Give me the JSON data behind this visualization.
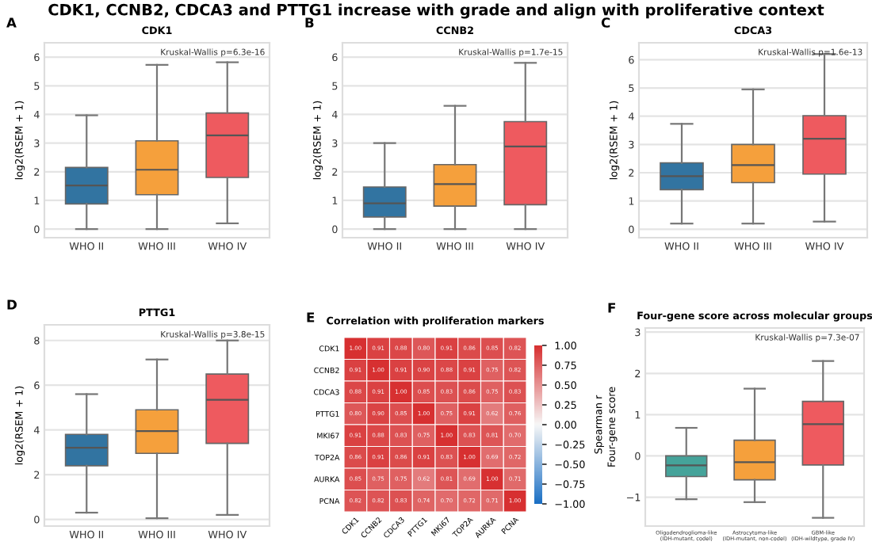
{
  "chart_data": [
    {
      "type": "box",
      "title": "CDK1",
      "ylabel": "log2(RSEM + 1)",
      "categories": [
        "WHO II",
        "WHO III",
        "WHO IV"
      ],
      "colors": [
        "#3274a1",
        "#f5a03c",
        "#ee5a5f"
      ],
      "boxes": [
        {
          "low": 0,
          "q1": 0.88,
          "median": 1.52,
          "q3": 2.15,
          "high": 3.97
        },
        {
          "low": 0,
          "q1": 1.2,
          "median": 2.07,
          "q3": 3.08,
          "high": 5.73
        },
        {
          "low": 0.2,
          "q1": 1.8,
          "median": 3.27,
          "q3": 4.05,
          "high": 5.82
        }
      ],
      "ylim": [
        -0.3,
        6.5
      ],
      "yticks": [
        0,
        1,
        2,
        3,
        4,
        5,
        6
      ],
      "grid": "y",
      "annotations": [
        "A",
        "Kruskal-Wallis p=6.3e-16",
        "CDK1, CCNB2, CDCA3 and PTTG1 increase with grade and align with proliferative context"
      ]
    },
    {
      "type": "box",
      "title": "CCNB2",
      "ylabel": "log2(RSEM + 1)",
      "categories": [
        "WHO II",
        "WHO III",
        "WHO IV"
      ],
      "colors": [
        "#3274a1",
        "#f5a03c",
        "#ee5a5f"
      ],
      "boxes": [
        {
          "low": 0,
          "q1": 0.42,
          "median": 0.9,
          "q3": 1.47,
          "high": 3.0
        },
        {
          "low": 0,
          "q1": 0.8,
          "median": 1.57,
          "q3": 2.25,
          "high": 4.3
        },
        {
          "low": 0,
          "q1": 0.85,
          "median": 2.88,
          "q3": 3.75,
          "high": 5.8
        }
      ],
      "ylim": [
        -0.3,
        6.5
      ],
      "yticks": [
        0,
        1,
        2,
        3,
        4,
        5,
        6
      ],
      "grid": "y",
      "annotations": [
        "B",
        "Kruskal-Wallis p=1.7e-15"
      ]
    },
    {
      "type": "box",
      "title": "CDCA3",
      "ylabel": "log2(RSEM + 1)",
      "categories": [
        "WHO II",
        "WHO III",
        "WHO IV"
      ],
      "colors": [
        "#3274a1",
        "#f5a03c",
        "#ee5a5f"
      ],
      "boxes": [
        {
          "low": 0.2,
          "q1": 1.4,
          "median": 1.88,
          "q3": 2.35,
          "high": 3.73
        },
        {
          "low": 0.2,
          "q1": 1.65,
          "median": 2.27,
          "q3": 3.0,
          "high": 4.95
        },
        {
          "low": 0.27,
          "q1": 1.95,
          "median": 3.2,
          "q3": 4.02,
          "high": 6.2
        }
      ],
      "ylim": [
        -0.3,
        6.6
      ],
      "yticks": [
        0,
        1,
        2,
        3,
        4,
        5,
        6
      ],
      "grid": "y",
      "annotations": [
        "C",
        "Kruskal-Wallis p=1.6e-13"
      ]
    },
    {
      "type": "box",
      "title": "PTTG1",
      "ylabel": "log2(RSEM + 1)",
      "categories": [
        "WHO II",
        "WHO III",
        "WHO IV"
      ],
      "colors": [
        "#3274a1",
        "#f5a03c",
        "#ee5a5f"
      ],
      "boxes": [
        {
          "low": 0.3,
          "q1": 2.4,
          "median": 3.2,
          "q3": 3.8,
          "high": 5.6
        },
        {
          "low": 0.05,
          "q1": 2.95,
          "median": 3.95,
          "q3": 4.9,
          "high": 7.15
        },
        {
          "low": 0.2,
          "q1": 3.4,
          "median": 5.35,
          "q3": 6.5,
          "high": 8.0
        }
      ],
      "ylim": [
        -0.3,
        8.7
      ],
      "yticks": [
        0,
        2,
        4,
        6,
        8
      ],
      "grid": "y",
      "annotations": [
        "D",
        "Kruskal-Wallis p=3.8e-15"
      ]
    },
    {
      "type": "heatmap",
      "title": "Correlation with proliferation markers",
      "clabel": "Spearman r",
      "categories": [
        "CDK1",
        "CCNB2",
        "CDCA3",
        "PTTG1",
        "MKI67",
        "TOP2A",
        "AURKA",
        "PCNA"
      ],
      "y_categories": [
        "CDK1",
        "CCNB2",
        "CDCA3",
        "PTTG1",
        "MKI67",
        "TOP2A",
        "AURKA",
        "PCNA"
      ],
      "cells": [
        [
          1.0,
          0.91,
          0.88,
          0.8,
          0.91,
          0.86,
          0.85,
          0.82
        ],
        [
          0.91,
          1.0,
          0.91,
          0.9,
          0.88,
          0.91,
          0.75,
          0.82
        ],
        [
          0.88,
          0.91,
          1.0,
          0.85,
          0.83,
          0.86,
          0.75,
          0.83
        ],
        [
          0.8,
          0.9,
          0.85,
          1.0,
          0.75,
          0.91,
          0.62,
          0.76
        ],
        [
          0.91,
          0.88,
          0.83,
          0.75,
          1.0,
          0.83,
          0.81,
          0.7
        ],
        [
          0.86,
          0.91,
          0.86,
          0.91,
          0.83,
          1.0,
          0.69,
          0.72
        ],
        [
          0.85,
          0.75,
          0.75,
          0.62,
          0.81,
          0.69,
          1.0,
          0.71
        ],
        [
          0.82,
          0.82,
          0.83,
          0.74,
          0.7,
          0.72,
          0.71,
          1.0
        ]
      ],
      "cell_labels": [
        [
          "1.00",
          "0.91",
          "0.88",
          "0.80",
          "0.91",
          "0.86",
          "0.85",
          "0.82"
        ],
        [
          "0.91",
          "1.00",
          "0.91",
          "0.90",
          "0.88",
          "0.91",
          "0.75",
          "0.82"
        ],
        [
          "0.88",
          "0.91",
          "1.00",
          "0.85",
          "0.83",
          "0.86",
          "0.75",
          "0.83"
        ],
        [
          "0.80",
          "0.90",
          "0.85",
          "1.00",
          "0.75",
          "0.91",
          "0.62",
          "0.76"
        ],
        [
          "0.91",
          "0.88",
          "0.83",
          "0.75",
          "1.00",
          "0.83",
          "0.81",
          "0.70"
        ],
        [
          "0.86",
          "0.91",
          "0.86",
          "0.91",
          "0.83",
          "1.00",
          "0.69",
          "0.72"
        ],
        [
          "0.85",
          "0.75",
          "0.75",
          "0.62",
          "0.81",
          "0.69",
          "1.00",
          "0.71"
        ],
        [
          "0.82",
          "0.82",
          "0.83",
          "0.74",
          "0.70",
          "0.72",
          "0.71",
          "1.00"
        ]
      ],
      "colors": [
        "#1a6fc4",
        "#f7f7f7",
        "#d73031"
      ],
      "clim": [
        -1,
        1
      ],
      "cticks": [
        {
          "value": -1,
          "label": "−1.00"
        },
        {
          "value": -0.75,
          "label": "−0.75"
        },
        {
          "value": -0.5,
          "label": "−0.50"
        },
        {
          "value": -0.25,
          "label": "−0.25"
        },
        {
          "value": 0,
          "label": "0.00"
        },
        {
          "value": 0.25,
          "label": "0.25"
        },
        {
          "value": 0.5,
          "label": "0.50"
        },
        {
          "value": 0.75,
          "label": "0.75"
        },
        {
          "value": 1,
          "label": "1.00"
        }
      ],
      "annotations": [
        "E"
      ]
    },
    {
      "type": "box",
      "title": "Four-gene score across molecular groups",
      "ylabel": "Four-gene score",
      "categories": [
        "Oligodendroglioma-like\n(IDH-mutant, codel)",
        "Astrocytoma-like\n(IDH-mutant, non-codel)",
        "GBM-like\n(IDH-wildtype, grade IV)"
      ],
      "colors": [
        "#45a39a",
        "#f5a03c",
        "#ee5a5f"
      ],
      "boxes": [
        {
          "low": -1.05,
          "q1": -0.5,
          "median": -0.23,
          "q3": 0.0,
          "high": 0.68
        },
        {
          "low": -1.12,
          "q1": -0.58,
          "median": -0.15,
          "q3": 0.38,
          "high": 1.63
        },
        {
          "low": -1.5,
          "q1": -0.22,
          "median": 0.77,
          "q3": 1.32,
          "high": 2.3
        }
      ],
      "ylim": [
        -1.7,
        3.1
      ],
      "yticks": [
        {
          "value": -1,
          "label": "−1"
        },
        0,
        1,
        2,
        3
      ],
      "grid": "y",
      "annotations": [
        "F",
        "Kruskal-Wallis p=7.3e-07"
      ]
    }
  ]
}
